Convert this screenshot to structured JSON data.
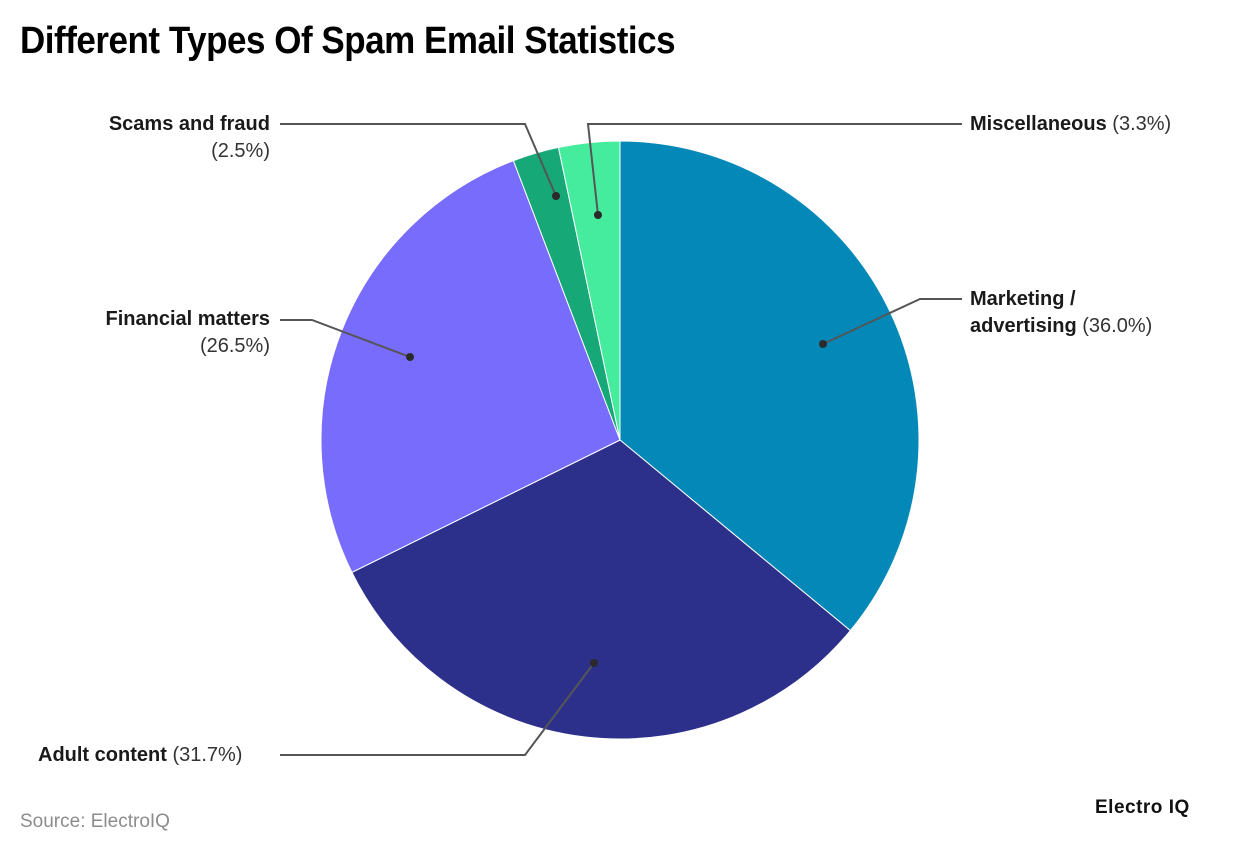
{
  "chart_data": {
    "type": "pie",
    "title": "Different Types Of Spam Email Statistics",
    "categories": [
      "Marketing / advertising",
      "Adult content",
      "Financial matters",
      "Scams and fraud",
      "Miscellaneous"
    ],
    "values": [
      36.0,
      31.7,
      26.5,
      2.5,
      3.3
    ],
    "unit": "%",
    "colors": [
      "#0388b8",
      "#2d308a",
      "#786cfd",
      "#16a876",
      "#45ec9e"
    ],
    "start_angle": "12 o'clock, clockwise",
    "legend": "none (direct labels with leader lines)"
  },
  "header": {
    "title": "Different Types Of Spam Email Statistics"
  },
  "labels": {
    "marketing": {
      "line1": "Marketing /",
      "name2": "advertising",
      "pct": "(36.0%)"
    },
    "adult": {
      "name": "Adult content",
      "pct": "(31.7%)"
    },
    "financial": {
      "name": "Financial matters",
      "pct": "(26.5%)"
    },
    "scams": {
      "name": "Scams and fraud",
      "pct": "(2.5%)"
    },
    "misc": {
      "name": "Miscellaneous",
      "pct": "(3.3%)"
    }
  },
  "footer": {
    "source": "Source: ElectroIQ",
    "brand": "Electro IQ"
  }
}
